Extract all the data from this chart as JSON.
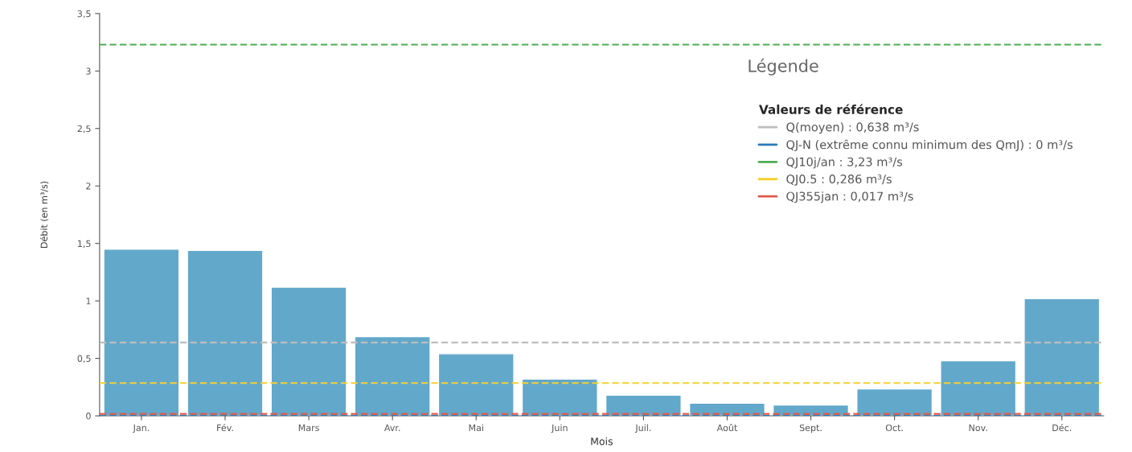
{
  "chart_data": {
    "type": "bar",
    "xlabel": "Mois",
    "ylabel": "Débit (en m³/s)",
    "legend_title": "Valeurs de référence",
    "annotations": [
      "Légende"
    ],
    "categories": [
      "Jan.",
      "Fév.",
      "Mars",
      "Avr.",
      "Mai",
      "Juin",
      "Juil.",
      "Août",
      "Sept.",
      "Oct.",
      "Nov.",
      "Déc."
    ],
    "values": [
      1.45,
      1.44,
      1.12,
      0.69,
      0.54,
      0.32,
      0.18,
      0.11,
      0.095,
      0.235,
      0.48,
      1.02
    ],
    "color": "#62a8cb",
    "ylim": [
      0,
      3.5
    ],
    "yticks": [
      0,
      {
        "value": 0.5,
        "label": "0,5"
      },
      1,
      {
        "value": 1.5,
        "label": "1,5"
      },
      2,
      {
        "value": 2.5,
        "label": "2,5"
      },
      3,
      {
        "value": 3.5,
        "label": "3,5"
      }
    ],
    "ref_lines": [
      {
        "axis": "y",
        "value": 0.638,
        "label": "Q(moyen) : 0,638 m³/s",
        "color": "#bdbdbd",
        "line_style": "dashed"
      },
      {
        "axis": "y",
        "value": 0,
        "label": "QJ-N (extrême connu minimum des QmJ) : 0 m³/s",
        "color": "#2b7bb9",
        "line_style": "dashed"
      },
      {
        "axis": "y",
        "value": 3.23,
        "label": "QJ10j/an : 3,23 m³/s",
        "color": "#4caf50",
        "line_style": "dashed"
      },
      {
        "axis": "y",
        "value": 0.286,
        "label": "QJ0.5 : 0,286 m³/s",
        "color": "#f5d033",
        "line_style": "dashed"
      },
      {
        "axis": "y",
        "value": 0.017,
        "label": "QJ355jan : 0,017 m³/s",
        "color": "#e05a4a",
        "line_style": "dashed"
      }
    ],
    "grid": false,
    "legend": "top right"
  }
}
